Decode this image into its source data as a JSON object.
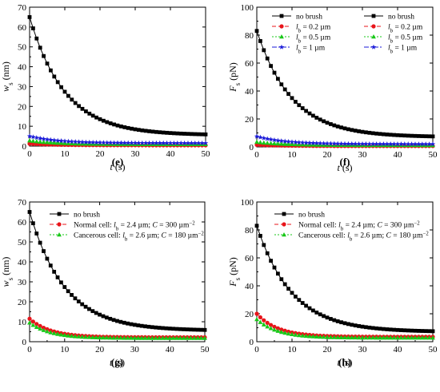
{
  "chart_data": [
    {
      "panel_label": "(e)",
      "type": "line",
      "xlabel": "t (s)",
      "ylabel": {
        "base": "w",
        "sub": "s",
        "suffix": " (nm)"
      },
      "xlim": [
        0,
        50
      ],
      "ylim": [
        0,
        70
      ],
      "xticks": [
        0,
        10,
        20,
        30,
        40,
        50
      ],
      "yticks": [
        0,
        10,
        20,
        30,
        40,
        50,
        60,
        70
      ],
      "legend_position": "top-right",
      "series": [
        {
          "legend": [
            {
              "t": "no brush"
            }
          ],
          "color": "#000000",
          "marker": "square",
          "dash": "",
          "start": 65,
          "end": 5.5,
          "tau": 10
        },
        {
          "legend": [
            {
              "t": "l",
              "i": true
            },
            {
              "t": "b",
              "sub": true
            },
            {
              "t": " = 0.2 µm"
            }
          ],
          "color": "#e8141a",
          "marker": "circle",
          "dash": "5,3",
          "start": 1.2,
          "end": 0.4,
          "tau": 8
        },
        {
          "legend": [
            {
              "t": "l",
              "i": true
            },
            {
              "t": "b",
              "sub": true
            },
            {
              "t": " = 0.5 µm"
            }
          ],
          "color": "#18c818",
          "marker": "triangle",
          "dash": "2,2",
          "start": 2.8,
          "end": 0.9,
          "tau": 8
        },
        {
          "legend": [
            {
              "t": "l",
              "i": true
            },
            {
              "t": "b",
              "sub": true
            },
            {
              "t": " = 1 µm"
            }
          ],
          "color": "#1a1ad8",
          "marker": "star",
          "dash": "6,2,2,2",
          "start": 5.0,
          "end": 1.5,
          "tau": 8
        }
      ]
    },
    {
      "panel_label": "(f)",
      "type": "line",
      "xlabel": "t (s)",
      "ylabel": {
        "base": "F",
        "sub": "s",
        "suffix": " (pN)"
      },
      "xlim": [
        0,
        50
      ],
      "ylim": [
        0,
        100
      ],
      "xticks": [
        0,
        10,
        20,
        30,
        40,
        50
      ],
      "yticks": [
        0,
        20,
        40,
        60,
        80,
        100
      ],
      "legend_position": "top-right",
      "series": [
        {
          "legend": [
            {
              "t": "no brush"
            }
          ],
          "color": "#000000",
          "marker": "square",
          "dash": "",
          "start": 83,
          "end": 7,
          "tau": 10
        },
        {
          "legend": [
            {
              "t": "l",
              "i": true
            },
            {
              "t": "b",
              "sub": true
            },
            {
              "t": " = 0.2 µm"
            }
          ],
          "color": "#e8141a",
          "marker": "circle",
          "dash": "5,3",
          "start": 1.5,
          "end": 0.6,
          "tau": 8
        },
        {
          "legend": [
            {
              "t": "l",
              "i": true
            },
            {
              "t": "b",
              "sub": true
            },
            {
              "t": " = 0.5 µm"
            }
          ],
          "color": "#18c818",
          "marker": "triangle",
          "dash": "2,2",
          "start": 3.5,
          "end": 1.2,
          "tau": 8
        },
        {
          "legend": [
            {
              "t": "l",
              "i": true
            },
            {
              "t": "b",
              "sub": true
            },
            {
              "t": " = 1 µm"
            }
          ],
          "color": "#1a1ad8",
          "marker": "star",
          "dash": "6,2,2,2",
          "start": 7.5,
          "end": 2.0,
          "tau": 8
        }
      ]
    },
    {
      "panel_label": "(g)",
      "type": "line",
      "xlabel": "t (s)",
      "ylabel": {
        "base": "w",
        "sub": "s",
        "suffix": " (nm)"
      },
      "xlim": [
        0,
        50
      ],
      "ylim": [
        0,
        70
      ],
      "xticks": [
        0,
        10,
        20,
        30,
        40,
        50
      ],
      "yticks": [
        0,
        10,
        20,
        30,
        40,
        50,
        60,
        70
      ],
      "legend_position": "top-right",
      "series": [
        {
          "legend": [
            {
              "t": "no brush"
            }
          ],
          "color": "#000000",
          "marker": "square",
          "dash": "",
          "start": 65,
          "end": 5.5,
          "tau": 10
        },
        {
          "legend": [
            {
              "t": "Normal cell: "
            },
            {
              "t": "l",
              "i": true
            },
            {
              "t": "b",
              "sub": true
            },
            {
              "t": " = 2.4 µm; "
            },
            {
              "t": "C",
              "i": true
            },
            {
              "t": " = 300 µm"
            },
            {
              "t": "−2",
              "sup": true
            }
          ],
          "color": "#e8141a",
          "marker": "circle",
          "dash": "5,3",
          "start": 11.5,
          "end": 2.2,
          "tau": 6
        },
        {
          "legend": [
            {
              "t": "Cancerous cell: "
            },
            {
              "t": "l",
              "i": true
            },
            {
              "t": "b",
              "sub": true
            },
            {
              "t": " = 2.6 µm; "
            },
            {
              "t": "C",
              "i": true
            },
            {
              "t": " = 180 µm"
            },
            {
              "t": "−2",
              "sup": true
            }
          ],
          "color": "#18c818",
          "marker": "triangle",
          "dash": "2,2",
          "start": 9.5,
          "end": 1.8,
          "tau": 6
        }
      ]
    },
    {
      "panel_label": "(h)",
      "type": "line",
      "xlabel": "t (s)",
      "ylabel": {
        "base": "F",
        "sub": "s",
        "suffix": " (pN)"
      },
      "xlim": [
        0,
        50
      ],
      "ylim": [
        0,
        100
      ],
      "xticks": [
        0,
        10,
        20,
        30,
        40,
        50
      ],
      "yticks": [
        0,
        20,
        40,
        60,
        80,
        100
      ],
      "legend_position": "top-right",
      "series": [
        {
          "legend": [
            {
              "t": "no brush"
            }
          ],
          "color": "#000000",
          "marker": "square",
          "dash": "",
          "start": 83,
          "end": 7,
          "tau": 10
        },
        {
          "legend": [
            {
              "t": "Normal cell: "
            },
            {
              "t": "l",
              "i": true
            },
            {
              "t": "b",
              "sub": true
            },
            {
              "t": " = 2.4 µm; "
            },
            {
              "t": "C",
              "i": true
            },
            {
              "t": " = 300 µm"
            },
            {
              "t": "−2",
              "sup": true
            }
          ],
          "color": "#e8141a",
          "marker": "circle",
          "dash": "5,3",
          "start": 20,
          "end": 3.5,
          "tau": 6
        },
        {
          "legend": [
            {
              "t": "Cancerous cell: "
            },
            {
              "t": "l",
              "i": true
            },
            {
              "t": "b",
              "sub": true
            },
            {
              "t": " = 2.6 µm; "
            },
            {
              "t": "C",
              "i": true
            },
            {
              "t": " = 180 µm"
            },
            {
              "t": "−2",
              "sup": true
            }
          ],
          "color": "#18c818",
          "marker": "triangle",
          "dash": "2,2",
          "start": 16,
          "end": 2.8,
          "tau": 6
        }
      ]
    }
  ]
}
